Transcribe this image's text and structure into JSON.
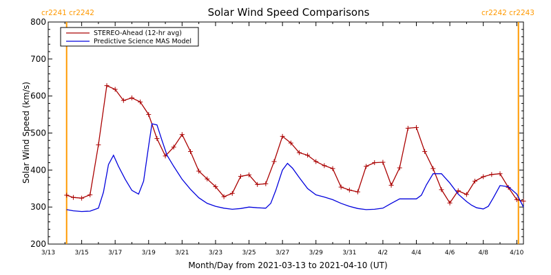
{
  "chart_data": {
    "type": "line",
    "title": "Solar Wind Speed Comparisons",
    "xlabel": "Month/Day from 2021-03-13 to 2021-04-10 (UT)",
    "ylabel": "Solar Wind Speed (km/s)",
    "ylim": [
      200,
      800
    ],
    "xlim": [
      0,
      28.4
    ],
    "yticks": [
      200,
      300,
      400,
      500,
      600,
      700,
      800
    ],
    "xticks": [
      {
        "day": 0,
        "label": "3/13"
      },
      {
        "day": 2,
        "label": "3/15"
      },
      {
        "day": 4,
        "label": "3/17"
      },
      {
        "day": 6,
        "label": "3/19"
      },
      {
        "day": 8,
        "label": "3/21"
      },
      {
        "day": 10,
        "label": "3/23"
      },
      {
        "day": 12,
        "label": "3/25"
      },
      {
        "day": 14,
        "label": "3/27"
      },
      {
        "day": 16,
        "label": "3/29"
      },
      {
        "day": 18,
        "label": "3/31"
      },
      {
        "day": 20,
        "label": "4/2"
      },
      {
        "day": 22,
        "label": "4/4"
      },
      {
        "day": 24,
        "label": "4/6"
      },
      {
        "day": 26,
        "label": "4/8"
      },
      {
        "day": 28,
        "label": "4/10"
      }
    ],
    "legend_position": "top-left",
    "carrington_markers": [
      {
        "day": 1.1,
        "color": "#ff9900"
      },
      {
        "day": 28.1,
        "color": "#ff9900"
      }
    ],
    "corner_labels": {
      "left": "cr2241 cr2242",
      "right": "cr2242 cr2243"
    },
    "series": [
      {
        "name": "STEREO-Ahead (12-hr avg)",
        "color": "#aa0000",
        "marker": "+",
        "x": [
          1.1,
          1.5,
          2.0,
          2.5,
          3.0,
          3.5,
          4.0,
          4.5,
          5.0,
          5.5,
          6.0,
          6.5,
          7.0,
          7.5,
          8.0,
          8.5,
          9.0,
          9.5,
          10.0,
          10.5,
          11.0,
          11.5,
          12.0,
          12.5,
          13.0,
          13.5,
          14.0,
          14.5,
          15.0,
          15.5,
          16.0,
          16.5,
          17.0,
          17.5,
          18.0,
          18.5,
          19.0,
          19.5,
          20.0,
          20.5,
          21.0,
          21.5,
          22.0,
          22.5,
          23.0,
          23.5,
          24.0,
          24.5,
          25.0,
          25.5,
          26.0,
          26.5,
          27.0,
          27.5,
          28.0,
          28.4
        ],
        "values": [
          332,
          326,
          324,
          333,
          468,
          628,
          618,
          588,
          595,
          584,
          550,
          485,
          438,
          462,
          496,
          450,
          397,
          376,
          355,
          328,
          337,
          383,
          387,
          361,
          363,
          423,
          491,
          473,
          447,
          440,
          423,
          412,
          404,
          354,
          346,
          341,
          410,
          420,
          421,
          359,
          406,
          513,
          515,
          450,
          404,
          347,
          311,
          344,
          334,
          370,
          382,
          388,
          390,
          353,
          320,
          316
        ]
      },
      {
        "name": "Predictive Science MAS Model",
        "color": "#0000dd",
        "marker": "none",
        "x": [
          1.1,
          1.5,
          2.0,
          2.5,
          3.0,
          3.3,
          3.6,
          3.9,
          4.2,
          4.6,
          5.0,
          5.4,
          5.7,
          6.0,
          6.2,
          6.5,
          6.8,
          7.1,
          7.5,
          8.0,
          8.5,
          9.0,
          9.5,
          10.0,
          10.5,
          11.0,
          11.5,
          12.0,
          12.5,
          13.0,
          13.3,
          13.6,
          14.0,
          14.3,
          14.6,
          15.0,
          15.5,
          16.0,
          16.5,
          17.0,
          17.5,
          18.0,
          18.5,
          19.0,
          19.5,
          20.0,
          20.5,
          21.0,
          21.3,
          21.7,
          22.0,
          22.3,
          22.6,
          23.0,
          23.5,
          24.0,
          24.5,
          25.0,
          25.3,
          25.6,
          26.0,
          26.3,
          26.6,
          27.0,
          27.5,
          28.0,
          28.4
        ],
        "values": [
          293,
          290,
          288,
          289,
          297,
          340,
          415,
          440,
          410,
          375,
          345,
          335,
          370,
          465,
          525,
          522,
          480,
          440,
          410,
          375,
          348,
          325,
          310,
          302,
          297,
          294,
          296,
          300,
          298,
          297,
          310,
          345,
          400,
          418,
          405,
          380,
          350,
          333,
          327,
          320,
          310,
          302,
          296,
          293,
          294,
          297,
          310,
          322,
          322,
          322,
          322,
          332,
          360,
          390,
          390,
          365,
          335,
          315,
          305,
          298,
          295,
          302,
          325,
          358,
          355,
          335,
          300
        ]
      }
    ]
  }
}
